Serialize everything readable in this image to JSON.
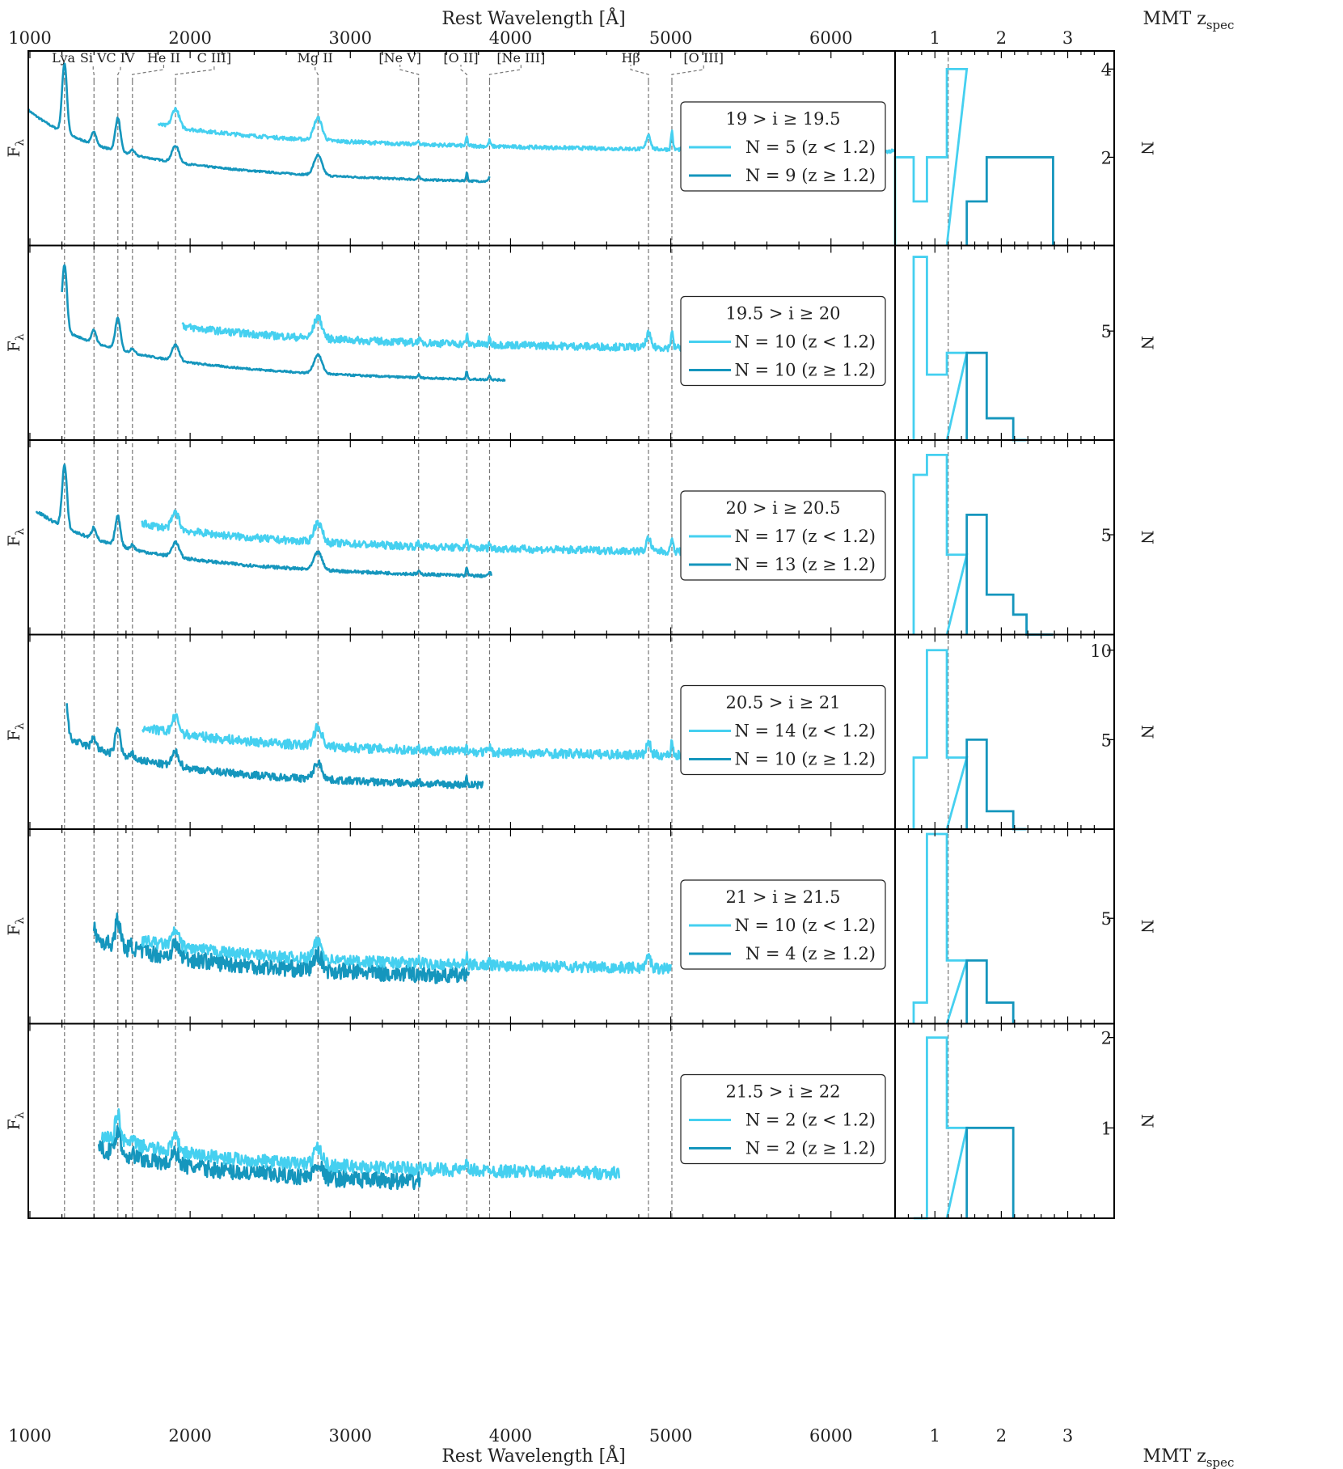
{
  "colors": {
    "low_z": "#45d0f0",
    "high_z": "#1596bd",
    "guide": "#777777",
    "frame": "#000000"
  },
  "chart_data": {
    "type": "line",
    "xlabel": "Rest Wavelength [Å]",
    "xlim": [
      990,
      6400
    ],
    "xticks": [
      1000,
      2000,
      3000,
      4000,
      5000,
      6000
    ],
    "ylabel": "F",
    "ylabel_sub": "λ",
    "hist_xlabel": "MMT z",
    "hist_xlabel_sub": "spec",
    "hist_xlim": [
      0.4,
      3.7
    ],
    "hist_xticks": [
      1,
      2,
      3
    ],
    "hist_ylabel": "N",
    "z_split": 1.2,
    "emission_lines": [
      {
        "label": "Lya",
        "wavelength": 1216,
        "label_at": 1210
      },
      {
        "label": "Si V",
        "wavelength": 1400,
        "label_at": 1395
      },
      {
        "label": "C IV",
        "wavelength": 1549,
        "label_at": 1565
      },
      {
        "label": "He II",
        "wavelength": 1640,
        "label_at": 1835
      },
      {
        "label": "C III]",
        "wavelength": 1909,
        "label_at": 2150
      },
      {
        "label": "Mg II",
        "wavelength": 2798,
        "label_at": 2780
      },
      {
        "label": "[Ne V]",
        "wavelength": 3426,
        "label_at": 3310
      },
      {
        "label": "[O II]",
        "wavelength": 3727,
        "label_at": 3690
      },
      {
        "label": "[Ne III]",
        "wavelength": 3869,
        "label_at": 4065
      },
      {
        "label": "Hβ",
        "wavelength": 4861,
        "label_at": 4750
      },
      {
        "label": "[O III]",
        "wavelength": 5007,
        "label_at": 5205
      }
    ],
    "panels": [
      {
        "title": "19 > i ≥ 19.5",
        "legend": [
          "N = 5 (z < 1.2)",
          "N = 9 (z ≥ 1.2)"
        ],
        "low_range": [
          1800,
          6400
        ],
        "high_range": [
          990,
          3870
        ],
        "low_base": 0.52,
        "high_base": 0.33,
        "low_noise": 0.01,
        "high_noise": 0.005,
        "hist_ymax": 4.3,
        "hist_yticks": [
          2,
          4
        ],
        "hist_edges": [
          0.4,
          0.68,
          0.88,
          1.18,
          1.48,
          1.78,
          2.18,
          2.78
        ],
        "hist_counts": [
          2,
          1,
          2,
          4,
          1,
          2,
          2
        ]
      },
      {
        "title": "19.5 > i ≥ 20",
        "legend": [
          "N = 10 (z < 1.2)",
          "N = 10 (z ≥ 1.2)"
        ],
        "low_range": [
          1950,
          5800
        ],
        "high_range": [
          1200,
          3970
        ],
        "low_base": 0.5,
        "high_base": 0.31,
        "low_noise": 0.02,
        "high_noise": 0.005,
        "hist_ymax": 8.7,
        "hist_yticks": [
          5
        ],
        "hist_edges": [
          0.68,
          0.88,
          1.18,
          1.48,
          1.78,
          2.18,
          2.38
        ],
        "hist_counts": [
          8.4,
          3,
          4,
          4,
          1,
          0
        ]
      },
      {
        "title": "20 > i ≥ 20.5",
        "legend": [
          "N = 17 (z < 1.2)",
          "N = 13 (z ≥ 1.2)"
        ],
        "low_range": [
          1700,
          5800
        ],
        "high_range": [
          1040,
          3880
        ],
        "low_base": 0.45,
        "high_base": 0.3,
        "low_noise": 0.02,
        "high_noise": 0.008,
        "hist_ymax": 9.5,
        "hist_yticks": [
          5
        ],
        "hist_edges": [
          0.68,
          0.88,
          1.18,
          1.48,
          1.78,
          2.18,
          2.38,
          2.78
        ],
        "hist_counts": [
          8,
          9,
          4,
          6,
          2,
          1,
          0
        ]
      },
      {
        "title": "20.5 > i ≥ 21",
        "legend": [
          "N = 14 (z < 1.2)",
          "N = 10 (z ≥ 1.2)"
        ],
        "low_range": [
          1700,
          5400
        ],
        "high_range": [
          1230,
          3830
        ],
        "low_base": 0.4,
        "high_base": 0.22,
        "low_noise": 0.025,
        "high_noise": 0.02,
        "hist_ymax": 10.6,
        "hist_yticks": [
          5,
          10
        ],
        "hist_edges": [
          0.68,
          0.88,
          1.18,
          1.48,
          1.78,
          2.18,
          2.38
        ],
        "hist_counts": [
          4,
          10,
          4,
          5,
          1,
          0
        ]
      },
      {
        "title": "21 > i ≥ 21.5",
        "legend": [
          "N = 10 (z < 1.2)",
          "N = 4 (z ≥ 1.2)"
        ],
        "low_range": [
          1700,
          5000
        ],
        "high_range": [
          1400,
          3740
        ],
        "low_base": 0.3,
        "high_base": 0.24,
        "low_noise": 0.03,
        "high_noise": 0.045,
        "hist_ymax": 9,
        "hist_yticks": [
          5
        ],
        "hist_edges": [
          0.68,
          0.88,
          1.18,
          1.48,
          1.78,
          2.18
        ],
        "hist_counts": [
          1,
          9,
          3,
          3,
          1
        ]
      },
      {
        "title": "21.5 > i ≥ 22",
        "legend": [
          "N = 2 (z < 1.2)",
          "N = 2 (z ≥ 1.2)"
        ],
        "low_range": [
          1450,
          4680
        ],
        "high_range": [
          1430,
          3440
        ],
        "low_base": 0.24,
        "high_base": 0.17,
        "low_noise": 0.035,
        "high_noise": 0.045,
        "hist_ymax": 2.1,
        "hist_yticks": [
          1,
          2
        ],
        "hist_edges": [
          0.68,
          0.88,
          1.18,
          1.48,
          1.78,
          2.18
        ],
        "hist_counts": [
          0,
          2,
          1,
          1,
          1
        ]
      }
    ]
  }
}
